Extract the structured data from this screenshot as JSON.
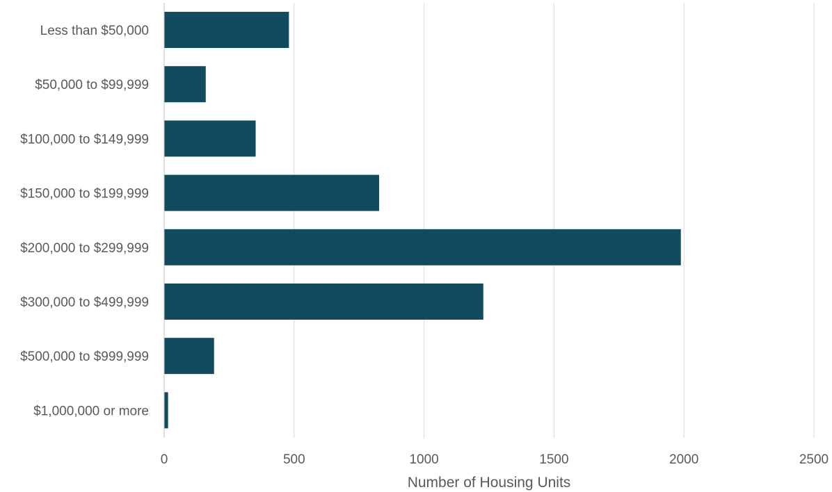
{
  "chart_data": {
    "type": "bar",
    "orientation": "horizontal",
    "categories": [
      "Less than $50,000",
      "$50,000 to $99,999",
      "$100,000 to $149,999",
      "$150,000 to $199,999",
      "$200,000 to $299,999",
      "$300,000 to $499,999",
      "$500,000 to $999,999",
      "$1,000,000 or more"
    ],
    "values": [
      480,
      160,
      352,
      827,
      1988,
      1228,
      192,
      15
    ],
    "xlabel": "Number of Housing Units",
    "ylabel": "",
    "xlim": [
      0,
      2500
    ],
    "xticks": [
      "0",
      "500",
      "1000",
      "1500",
      "2000",
      "2500"
    ],
    "grid": "vertical",
    "legend": "none",
    "colors": {
      "bar": "#124a5e",
      "grid": "#d9d9d9",
      "text": "#595959"
    }
  }
}
